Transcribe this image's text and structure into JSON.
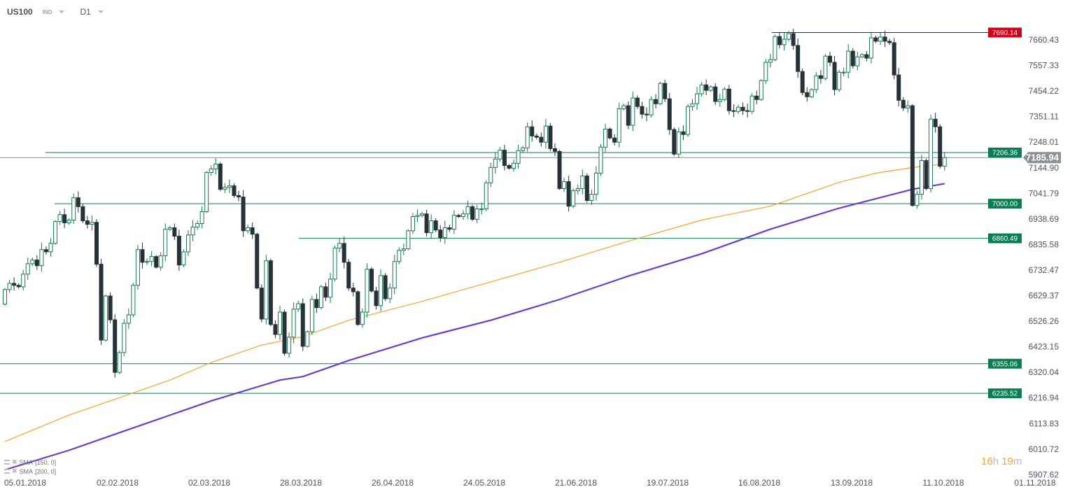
{
  "header": {
    "symbol": "US100",
    "symbol_type": "IND",
    "timeframe": "D1"
  },
  "indicators": [
    {
      "label": "SMA",
      "params": "[150,  0]",
      "color": "#f5a331"
    },
    {
      "label": "SMA",
      "params": "[200,  0]",
      "color": "#6a3fc1"
    }
  ],
  "timer": {
    "hours": "16",
    "h": "h",
    "minutes": "19",
    "m": "m"
  },
  "colors": {
    "up": "#137a50",
    "down": "#263238",
    "level": "#0b7d52",
    "resistance": "#d0021b",
    "current": "#8a9296"
  },
  "chart_data": {
    "type": "candlestick",
    "instrument": "US100",
    "timeframe": "D1",
    "first_open": 6595,
    "closes": [
      6654,
      6679,
      6671,
      6665,
      6716,
      6758,
      6773,
      6750,
      6815,
      6806,
      6840,
      6928,
      6956,
      6923,
      6934,
      7024,
      6988,
      6931,
      6917,
      6925,
      6756,
      6450,
      6628,
      6532,
      6320,
      6400,
      6518,
      6552,
      6671,
      6815,
      6764,
      6767,
      6787,
      6744,
      6790,
      6897,
      6903,
      6869,
      6753,
      6806,
      6874,
      6906,
      6920,
      6968,
      7126,
      7140,
      7160,
      7058,
      7066,
      7072,
      7033,
      7027,
      6891,
      6903,
      6877,
      6660,
      6535,
      6770,
      6513,
      6473,
      6563,
      6397,
      6462,
      6575,
      6597,
      6425,
      6484,
      6614,
      6581,
      6665,
      6623,
      6696,
      6821,
      6840,
      6764,
      6660,
      6645,
      6513,
      6563,
      6736,
      6648,
      6589,
      6710,
      6617,
      6660,
      6767,
      6812,
      6818,
      6891,
      6948,
      6953,
      6959,
      6883,
      6931,
      6894,
      6863,
      6903,
      6897,
      6953,
      6948,
      6959,
      6988,
      6937,
      6979,
      6979,
      7084,
      7146,
      7180,
      7216,
      7154,
      7143,
      7163,
      7214,
      7225,
      7310,
      7273,
      7268,
      7248,
      7313,
      7222,
      7211,
      7061,
      7089,
      6990,
      7053,
      7061,
      7112,
      7013,
      7038,
      7123,
      7228,
      7301,
      7265,
      7248,
      7383,
      7395,
      7316,
      7426,
      7392,
      7361,
      7358,
      7420,
      7403,
      7485,
      7423,
      7299,
      7200,
      7290,
      7279,
      7392,
      7403,
      7443,
      7479,
      7457,
      7471,
      7412,
      7420,
      7462,
      7375,
      7372,
      7389,
      7375,
      7372,
      7434,
      7420,
      7496,
      7570,
      7581,
      7674,
      7641,
      7663,
      7686,
      7638,
      7533,
      7448,
      7431,
      7460,
      7516,
      7505,
      7595,
      7570,
      7460,
      7530,
      7530,
      7615,
      7556,
      7592,
      7601,
      7587,
      7669,
      7655,
      7672,
      7655,
      7649,
      7519,
      7417,
      7386,
      7395,
      6993,
      7038,
      7174,
      7061,
      7341,
      7310,
      7151,
      7185.94
    ],
    "sma150": [
      [
        0,
        6041
      ],
      [
        14,
        6148
      ],
      [
        25,
        6218
      ],
      [
        36,
        6289
      ],
      [
        45,
        6360
      ],
      [
        56,
        6430
      ],
      [
        65,
        6464
      ],
      [
        75,
        6530
      ],
      [
        91,
        6606
      ],
      [
        106,
        6685
      ],
      [
        121,
        6764
      ],
      [
        136,
        6849
      ],
      [
        152,
        6934
      ],
      [
        167,
        6990
      ],
      [
        182,
        7086
      ],
      [
        190,
        7123
      ],
      [
        198,
        7146
      ],
      [
        205,
        7160
      ]
    ],
    "sma200": [
      [
        0,
        5927
      ],
      [
        14,
        6006
      ],
      [
        25,
        6077
      ],
      [
        45,
        6205
      ],
      [
        60,
        6289
      ],
      [
        65,
        6303
      ],
      [
        75,
        6368
      ],
      [
        91,
        6459
      ],
      [
        106,
        6530
      ],
      [
        121,
        6614
      ],
      [
        136,
        6708
      ],
      [
        152,
        6798
      ],
      [
        167,
        6897
      ],
      [
        182,
        6982
      ],
      [
        198,
        7058
      ],
      [
        205,
        7081
      ]
    ],
    "levels": [
      {
        "value": "7690.14",
        "kind": "resistance"
      },
      {
        "value": "7206.36",
        "kind": "level"
      },
      {
        "value": "7000.00",
        "kind": "level"
      },
      {
        "value": "6860.49",
        "kind": "level"
      },
      {
        "value": "6355.06",
        "kind": "level"
      },
      {
        "value": "6235.52",
        "kind": "level"
      }
    ],
    "current_price": "7185.94",
    "y_ticks": [
      "7660.43",
      "7557.33",
      "7454.22",
      "7351.11",
      "7248.01",
      "7144.90",
      "7041.79",
      "6938.69",
      "6835.58",
      "6732.47",
      "6629.37",
      "6526.26",
      "6423.15",
      "6320.04",
      "6216.94",
      "6113.83",
      "6010.72",
      "5907.62"
    ],
    "x_ticks": [
      "05.01.2018",
      "02.02.2018",
      "02.03.2018",
      "28.03.2018",
      "26.04.2018",
      "24.05.2018",
      "21.06.2018",
      "19.07.2018",
      "16.08.2018",
      "13.09.2018",
      "11.10.2018",
      "01.11.2018"
    ],
    "ylim": [
      5907.62,
      7690.14
    ],
    "grid": false
  }
}
